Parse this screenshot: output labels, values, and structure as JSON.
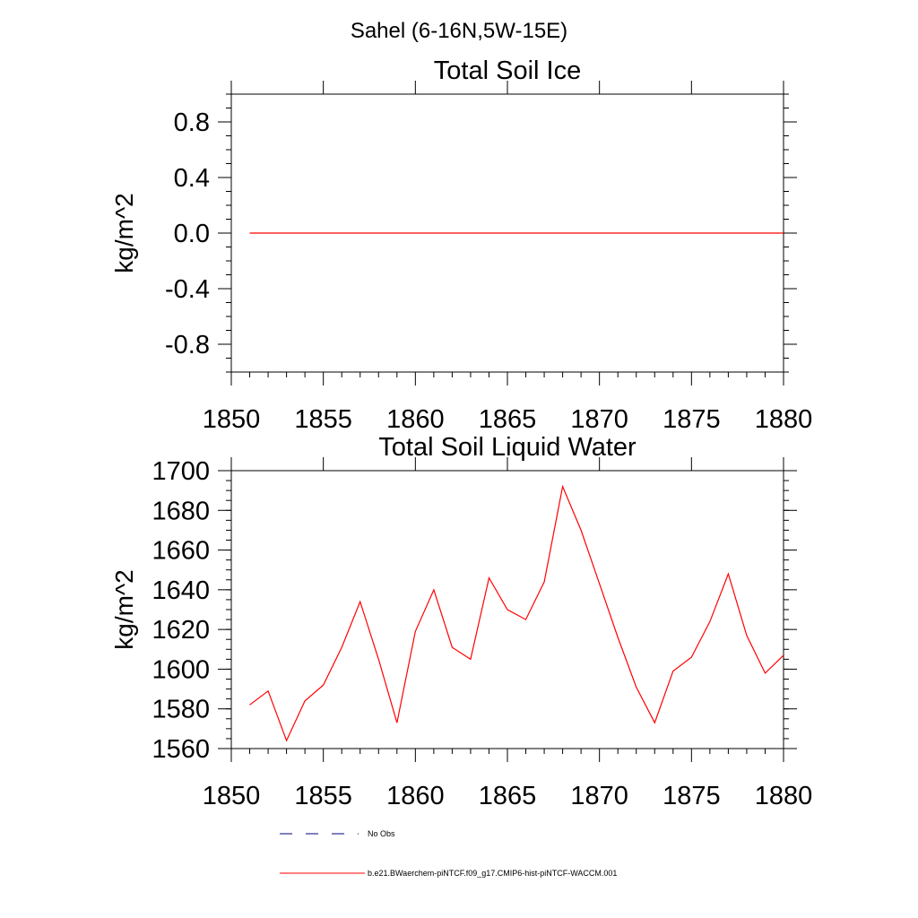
{
  "page": {
    "title": "Sahel (6-16N,5W-15E)"
  },
  "colors": {
    "series": "#ff0000",
    "obs": "#000080",
    "axis": "#000000"
  },
  "chart_data": [
    {
      "type": "line",
      "title": "Total Soil Ice",
      "ylabel": "kg/m^2",
      "xlabel": "",
      "xlim": [
        1850,
        1880
      ],
      "ylim": [
        -1,
        1
      ],
      "xticks": [
        1850,
        1855,
        1860,
        1865,
        1870,
        1875,
        1880
      ],
      "xtick_labels": [
        "1850",
        "1855",
        "1860",
        "1865",
        "1870",
        "1875",
        "1880"
      ],
      "yticks": [
        0.8,
        0.4,
        0.0,
        -0.4,
        -0.8
      ],
      "ytick_labels": [
        "0.8",
        "0.4",
        "0.0",
        "-0.4",
        "-0.8"
      ],
      "series": [
        {
          "name": "b.e21.BWaerchem-piNTCF.f09_g17.CMIP6-hist-piNTCF-WACCM.001",
          "x": [
            1851,
            1852,
            1853,
            1854,
            1855,
            1856,
            1857,
            1858,
            1859,
            1860,
            1861,
            1862,
            1863,
            1864,
            1865,
            1866,
            1867,
            1868,
            1869,
            1870,
            1871,
            1872,
            1873,
            1874,
            1875,
            1876,
            1877,
            1878,
            1879,
            1880
          ],
          "values": [
            0,
            0,
            0,
            0,
            0,
            0,
            0,
            0,
            0,
            0,
            0,
            0,
            0,
            0,
            0,
            0,
            0,
            0,
            0,
            0,
            0,
            0,
            0,
            0,
            0,
            0,
            0,
            0,
            0,
            0
          ]
        }
      ]
    },
    {
      "type": "line",
      "title": "Total Soil Liquid Water",
      "ylabel": "kg/m^2",
      "xlabel": "",
      "xlim": [
        1850,
        1880
      ],
      "ylim": [
        1560,
        1700
      ],
      "xticks": [
        1850,
        1855,
        1860,
        1865,
        1870,
        1875,
        1880
      ],
      "xtick_labels": [
        "1850",
        "1855",
        "1860",
        "1865",
        "1870",
        "1875",
        "1880"
      ],
      "yticks": [
        1700,
        1680,
        1660,
        1640,
        1620,
        1600,
        1580,
        1560
      ],
      "ytick_labels": [
        "1700",
        "1680",
        "1660",
        "1640",
        "1620",
        "1600",
        "1580",
        "1560"
      ],
      "series": [
        {
          "name": "b.e21.BWaerchem-piNTCF.f09_g17.CMIP6-hist-piNTCF-WACCM.001",
          "x": [
            1851,
            1852,
            1853,
            1854,
            1855,
            1856,
            1857,
            1858,
            1859,
            1860,
            1861,
            1862,
            1863,
            1864,
            1865,
            1866,
            1867,
            1868,
            1869,
            1870,
            1871,
            1872,
            1873,
            1874,
            1875,
            1876,
            1877,
            1878,
            1879,
            1880
          ],
          "values": [
            1582,
            1589,
            1564,
            1584,
            1592,
            1611,
            1634,
            1605,
            1573,
            1619,
            1640,
            1611,
            1605,
            1646,
            1630,
            1625,
            1644,
            1692,
            1670,
            1643,
            1616,
            1591,
            1573,
            1599,
            1606,
            1624,
            1648,
            1617,
            1598,
            1607
          ]
        }
      ]
    }
  ],
  "legend": {
    "placement": "bottom",
    "items": [
      {
        "label": "No Obs",
        "style": "dashed",
        "color": "#000080"
      },
      {
        "label": "b.e21.BWaerchem-piNTCF.f09_g17.CMIP6-hist-piNTCF-WACCM.001",
        "style": "solid",
        "color": "#ff0000"
      }
    ]
  }
}
